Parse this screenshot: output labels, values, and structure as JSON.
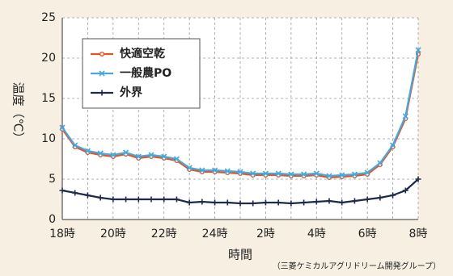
{
  "chart_data": {
    "type": "line",
    "y_label": "温度（℃）",
    "x_label": "時間",
    "source": "（三菱ケミカルアグリドリーム開発グループ）",
    "categories": [
      "18時",
      null,
      null,
      null,
      "20時",
      null,
      null,
      null,
      "22時",
      null,
      null,
      null,
      "24時",
      null,
      null,
      null,
      "2時",
      null,
      null,
      null,
      "4時",
      null,
      null,
      null,
      "6時",
      null,
      null,
      null,
      "8時"
    ],
    "series": [
      {
        "name": "快適空乾",
        "color": "#e0532b",
        "marker": "circle",
        "values": [
          11.2,
          9.0,
          8.3,
          8.0,
          7.8,
          8.1,
          7.6,
          7.8,
          7.6,
          7.3,
          6.2,
          5.9,
          5.9,
          5.8,
          5.7,
          5.5,
          5.5,
          5.5,
          5.4,
          5.4,
          5.5,
          5.2,
          5.3,
          5.4,
          5.6,
          6.8,
          9.0,
          12.5,
          20.5
        ]
      },
      {
        "name": "一般農PO",
        "color": "#4aa8d8",
        "marker": "x",
        "values": [
          11.4,
          9.2,
          8.5,
          8.2,
          8.0,
          8.3,
          7.8,
          8.0,
          7.8,
          7.5,
          6.4,
          6.1,
          6.1,
          6.0,
          5.9,
          5.7,
          5.7,
          5.7,
          5.6,
          5.6,
          5.7,
          5.4,
          5.5,
          5.6,
          5.8,
          7.0,
          9.2,
          12.8,
          21.0
        ]
      },
      {
        "name": "外界",
        "color": "#1e2a4a",
        "marker": "plus",
        "values": [
          3.6,
          3.3,
          3.0,
          2.7,
          2.5,
          2.5,
          2.5,
          2.5,
          2.5,
          2.5,
          2.1,
          2.2,
          2.1,
          2.1,
          2.0,
          2.0,
          2.1,
          2.1,
          2.0,
          2.1,
          2.2,
          2.3,
          2.1,
          2.3,
          2.5,
          2.7,
          3.0,
          3.6,
          5.0
        ]
      }
    ],
    "ylim": [
      0,
      25
    ],
    "yticks": [
      0,
      5,
      10,
      15,
      20,
      25
    ],
    "grid": true
  }
}
